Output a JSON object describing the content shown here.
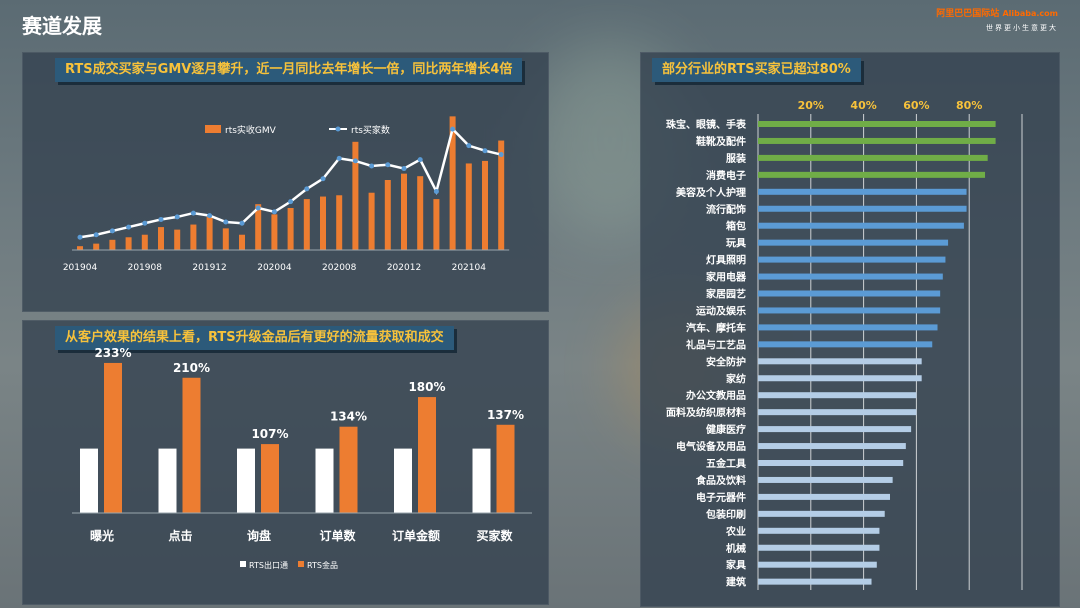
{
  "page": {
    "title": "赛道发展"
  },
  "logo": {
    "cn": "阿里巴巴国际站",
    "en": "Alibaba.com",
    "slogan": "世界更小生意更大"
  },
  "colors": {
    "orange": "#ed7d31",
    "white": "#ffffff",
    "green": "#70ad47",
    "blue": "#5b9bd5",
    "lightblue": "#b4cde6",
    "title_yellow": "#f7c23b"
  },
  "panel1": {
    "banner": "RTS成交买家与GMV逐月攀升，近一月同比去年增长一倍，同比两年增长4倍",
    "chart_data": {
      "type": "bar",
      "categories": [
        "201904",
        "201905",
        "201906",
        "201907",
        "201908",
        "201909",
        "201910",
        "201911",
        "201912",
        "202001",
        "202002",
        "202003",
        "202004",
        "202005",
        "202006",
        "202007",
        "202008",
        "202009",
        "202010",
        "202011",
        "202012",
        "202101",
        "202102",
        "202103",
        "202104",
        "202105",
        "202106"
      ],
      "tick_labels": [
        "201904",
        "201908",
        "201912",
        "202004",
        "202008",
        "202012",
        "202104"
      ],
      "series": [
        {
          "name": "rts实收GMV",
          "type": "bar",
          "values": [
            3,
            5,
            8,
            10,
            12,
            18,
            16,
            20,
            26,
            17,
            12,
            36,
            28,
            33,
            40,
            42,
            43,
            85,
            45,
            55,
            60,
            58,
            40,
            105,
            68,
            70,
            86
          ]
        },
        {
          "name": "rts买家数",
          "type": "line",
          "values": [
            10,
            12,
            15,
            18,
            21,
            24,
            26,
            29,
            27,
            22,
            21,
            33,
            30,
            38,
            48,
            56,
            72,
            70,
            66,
            67,
            64,
            71,
            46,
            95,
            82,
            78,
            75
          ]
        }
      ],
      "ylim": [
        0,
        110
      ]
    }
  },
  "panel2": {
    "banner": "从客户效果的结果上看，RTS升级金品后有更好的流量获取和成交",
    "chart_data": {
      "type": "bar",
      "categories": [
        "曝光",
        "点击",
        "询盘",
        "订单数",
        "订单金额",
        "买家数"
      ],
      "series": [
        {
          "name": "RTS出口通",
          "values": [
            1,
            1,
            1,
            1,
            1,
            1
          ]
        },
        {
          "name": "RTS金品",
          "values": [
            2.33,
            2.1,
            1.07,
            1.34,
            1.8,
            1.37
          ]
        }
      ],
      "data_labels": [
        "233%",
        "210%",
        "107%",
        "134%",
        "180%",
        "137%"
      ]
    }
  },
  "panel3": {
    "banner": "部分行业的RTS买家已超过80%",
    "chart_data": {
      "type": "bar",
      "orientation": "horizontal",
      "xticks": [
        "20%",
        "40%",
        "60%",
        "80%"
      ],
      "xlim": [
        0,
        1
      ],
      "categories": [
        "珠宝、眼镜、手表",
        "鞋靴及配件",
        "服装",
        "消费电子",
        "美容及个人护理",
        "流行配饰",
        "箱包",
        "玩具",
        "灯具照明",
        "家用电器",
        "家居园艺",
        "运动及娱乐",
        "汽车、摩托车",
        "礼品与工艺品",
        "安全防护",
        "家纺",
        "办公文教用品",
        "面料及纺织原材料",
        "健康医疗",
        "电气设备及用品",
        "五金工具",
        "食品及饮料",
        "电子元器件",
        "包装印刷",
        "农业",
        "机械",
        "家具",
        "建筑"
      ],
      "values": [
        0.9,
        0.9,
        0.87,
        0.86,
        0.79,
        0.79,
        0.78,
        0.72,
        0.71,
        0.7,
        0.69,
        0.69,
        0.68,
        0.66,
        0.62,
        0.62,
        0.6,
        0.6,
        0.58,
        0.56,
        0.55,
        0.51,
        0.5,
        0.48,
        0.46,
        0.46,
        0.45,
        0.43
      ],
      "groups": [
        "green",
        "green",
        "green",
        "green",
        "blue",
        "blue",
        "blue",
        "blue",
        "blue",
        "blue",
        "blue",
        "blue",
        "blue",
        "blue",
        "lightblue",
        "lightblue",
        "lightblue",
        "lightblue",
        "lightblue",
        "lightblue",
        "lightblue",
        "lightblue",
        "lightblue",
        "lightblue",
        "lightblue",
        "lightblue",
        "lightblue",
        "lightblue"
      ]
    }
  }
}
